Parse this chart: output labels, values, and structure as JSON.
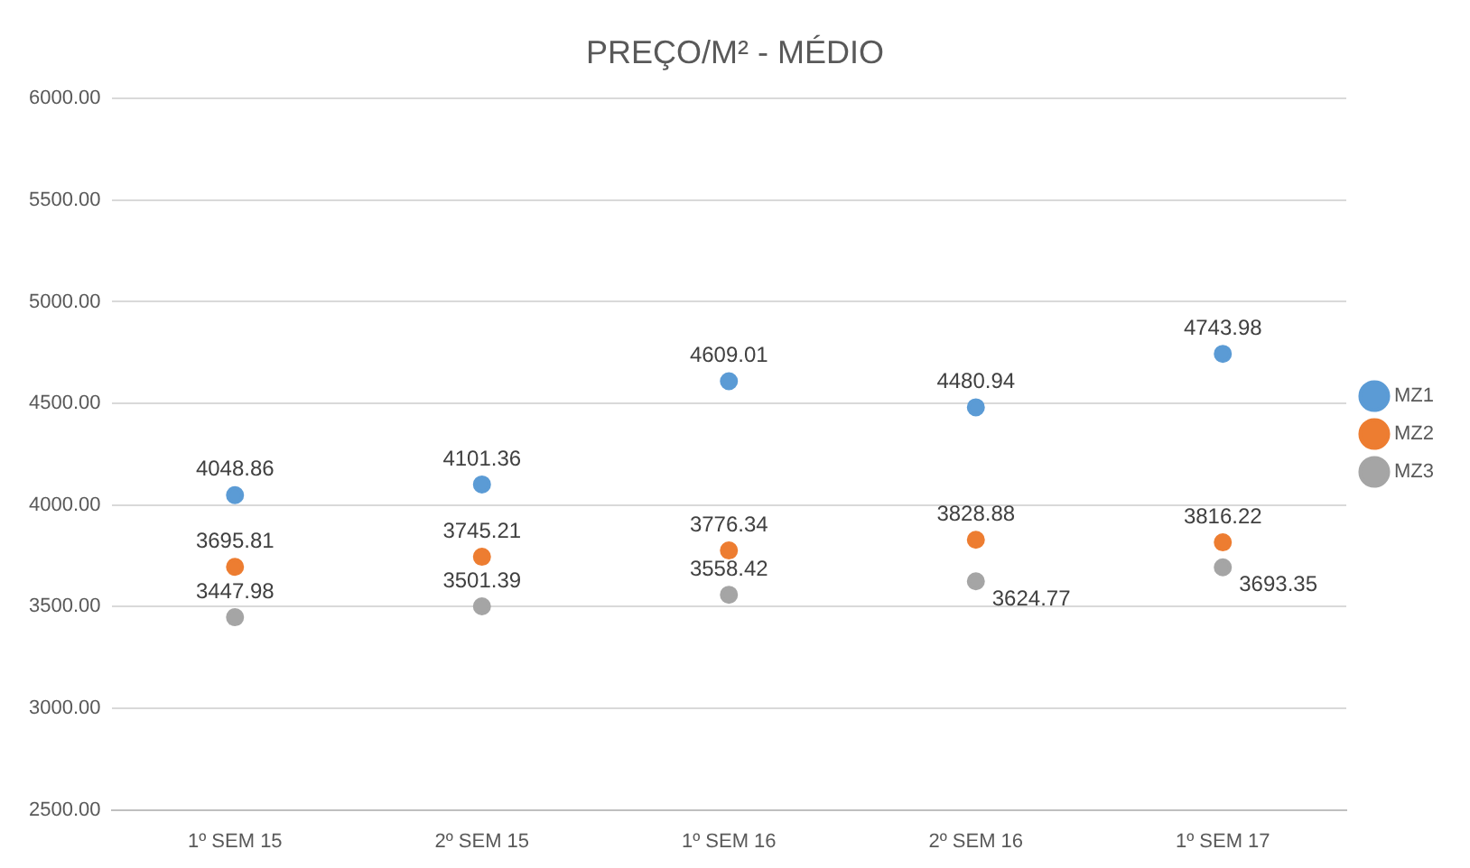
{
  "chart_data": {
    "type": "scatter",
    "title": "PREÇO/M² - MÉDIO",
    "categories": [
      "1º SEM 15",
      "2º SEM 15",
      "1º SEM 16",
      "2º SEM 16",
      "1º SEM 17"
    ],
    "series": [
      {
        "name": "MZ1",
        "color": "#5b9bd5",
        "values": [
          4048.86,
          4101.36,
          4609.01,
          4480.94,
          4743.98
        ]
      },
      {
        "name": "MZ2",
        "color": "#ed7d31",
        "values": [
          3695.81,
          3745.21,
          3776.34,
          3828.88,
          3816.22
        ]
      },
      {
        "name": "MZ3",
        "color": "#a5a5a5",
        "values": [
          3447.98,
          3501.39,
          3558.42,
          3624.77,
          3693.35
        ]
      }
    ],
    "ylim": [
      2500,
      6000
    ],
    "yticks": [
      {
        "value": 2500,
        "label": "2500.00"
      },
      {
        "value": 3000,
        "label": "3000.00"
      },
      {
        "value": 3500,
        "label": "3500.00"
      },
      {
        "value": 4000,
        "label": "4000.00"
      },
      {
        "value": 4500,
        "label": "4500.00"
      },
      {
        "value": 5000,
        "label": "5000.00"
      },
      {
        "value": 5500,
        "label": "5500.00"
      },
      {
        "value": 6000,
        "label": "6000.00"
      }
    ],
    "grid": "y",
    "legend": "right",
    "marker": "circle",
    "data_labels": true
  }
}
